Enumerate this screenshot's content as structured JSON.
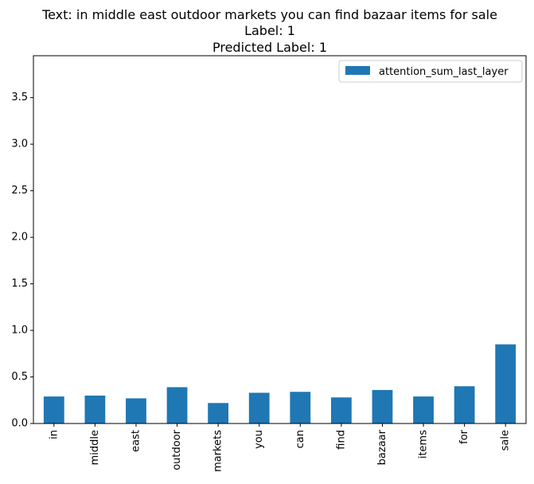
{
  "chart_data": {
    "type": "bar",
    "title_lines": [
      "Text: in middle east outdoor markets you can find bazaar items for sale",
      "Label: 1",
      "Predicted Label: 1"
    ],
    "xlabel": "",
    "ylabel": "",
    "categories": [
      "in",
      "middle",
      "east",
      "outdoor",
      "markets",
      "you",
      "can",
      "find",
      "bazaar",
      "items",
      "for",
      "sale"
    ],
    "series": [
      {
        "name": "attention_sum_last_layer",
        "color": "#1f77b4",
        "values": [
          0.29,
          0.3,
          0.27,
          0.39,
          0.22,
          0.33,
          0.34,
          0.28,
          0.36,
          0.29,
          0.4,
          0.85
        ]
      }
    ],
    "ylim": [
      0,
      3.95
    ],
    "yticks": [
      "0.0",
      "0.5",
      "1.0",
      "1.5",
      "2.0",
      "2.5",
      "3.0",
      "3.5"
    ],
    "legend_position": "top-right",
    "grid": false
  }
}
